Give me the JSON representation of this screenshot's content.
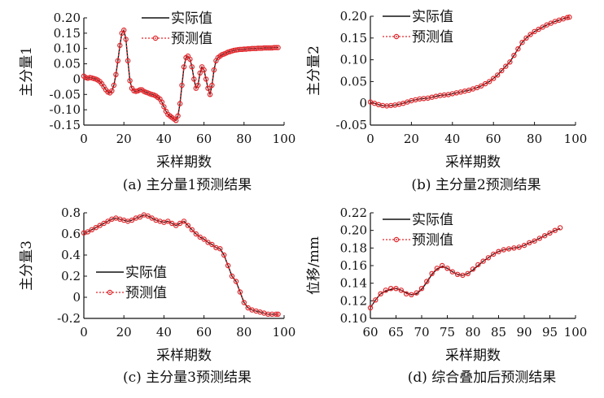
{
  "legend": {
    "actual": "实际值",
    "predicted": "预测值"
  },
  "colors": {
    "actual": "#111111",
    "predicted": "#e0262b"
  },
  "chart_data": [
    {
      "type": "line",
      "caption": "(a) 主分量1预测结果",
      "xlabel": "采样期数",
      "ylabel": "主分量1",
      "xlim": [
        0,
        100
      ],
      "ylim": [
        -0.15,
        0.2
      ],
      "xticks": [
        0,
        20,
        40,
        60,
        80,
        100
      ],
      "yticks": [
        -0.15,
        -0.1,
        -0.05,
        0,
        0.05,
        0.1,
        0.15,
        0.2
      ],
      "xtick_labels": [
        "0",
        "20",
        "40",
        "60",
        "80",
        "100"
      ],
      "ytick_labels": [
        "-0.15",
        "-0.10",
        "-0.05",
        "0",
        "0.05",
        "0.10",
        "0.15",
        "0.20"
      ],
      "legend_position": "top-right",
      "x": [
        0,
        1,
        2,
        3,
        4,
        5,
        6,
        7,
        8,
        9,
        10,
        11,
        12,
        13,
        14,
        15,
        16,
        17,
        18,
        19,
        20,
        21,
        22,
        23,
        24,
        25,
        26,
        27,
        28,
        29,
        30,
        31,
        32,
        33,
        34,
        35,
        36,
        37,
        38,
        39,
        40,
        41,
        42,
        43,
        44,
        45,
        46,
        47,
        48,
        49,
        50,
        51,
        52,
        53,
        54,
        55,
        56,
        57,
        58,
        59,
        60,
        61,
        62,
        63,
        64,
        65,
        66,
        67,
        68,
        69,
        70,
        71,
        72,
        73,
        74,
        75,
        76,
        77,
        78,
        79,
        80,
        81,
        82,
        83,
        84,
        85,
        86,
        87,
        88,
        89,
        90,
        91,
        92,
        93,
        94,
        95,
        96,
        97
      ],
      "series": [
        {
          "name": "实际值",
          "values": [
            0.01,
            0.005,
            0.003,
            0.005,
            0.004,
            0.002,
            0.0,
            -0.003,
            -0.008,
            -0.015,
            -0.025,
            -0.035,
            -0.042,
            -0.045,
            -0.038,
            -0.02,
            0.015,
            0.06,
            0.11,
            0.15,
            0.16,
            0.13,
            0.06,
            -0.005,
            -0.03,
            -0.038,
            -0.04,
            -0.038,
            -0.035,
            -0.035,
            -0.04,
            -0.043,
            -0.045,
            -0.048,
            -0.05,
            -0.052,
            -0.055,
            -0.06,
            -0.065,
            -0.075,
            -0.09,
            -0.105,
            -0.115,
            -0.12,
            -0.125,
            -0.13,
            -0.135,
            -0.12,
            -0.08,
            -0.02,
            0.04,
            0.07,
            0.075,
            0.065,
            0.04,
            0.0,
            -0.03,
            -0.02,
            0.02,
            0.04,
            0.03,
            0.0,
            -0.03,
            -0.05,
            -0.02,
            0.03,
            0.06,
            0.07,
            0.075,
            0.08,
            0.082,
            0.085,
            0.088,
            0.09,
            0.092,
            0.094,
            0.095,
            0.096,
            0.097,
            0.097,
            0.098,
            0.098,
            0.099,
            0.099,
            0.1,
            0.1,
            0.1,
            0.101,
            0.101,
            0.101,
            0.102,
            0.102,
            0.102,
            0.102,
            0.102,
            0.103,
            0.103,
            0.103
          ]
        },
        {
          "name": "预测值",
          "values": [
            0.01,
            0.005,
            0.003,
            0.005,
            0.004,
            0.002,
            0.0,
            -0.003,
            -0.008,
            -0.015,
            -0.025,
            -0.035,
            -0.042,
            -0.045,
            -0.038,
            -0.02,
            0.015,
            0.06,
            0.11,
            0.15,
            0.16,
            0.13,
            0.06,
            -0.005,
            -0.03,
            -0.038,
            -0.04,
            -0.038,
            -0.035,
            -0.035,
            -0.04,
            -0.043,
            -0.045,
            -0.048,
            -0.05,
            -0.052,
            -0.055,
            -0.06,
            -0.065,
            -0.075,
            -0.09,
            -0.105,
            -0.115,
            -0.12,
            -0.125,
            -0.13,
            -0.135,
            -0.12,
            -0.08,
            -0.02,
            0.04,
            0.07,
            0.075,
            0.065,
            0.04,
            0.0,
            -0.03,
            -0.02,
            0.02,
            0.04,
            0.03,
            0.0,
            -0.03,
            -0.05,
            -0.02,
            0.03,
            0.06,
            0.07,
            0.075,
            0.08,
            0.082,
            0.085,
            0.088,
            0.09,
            0.092,
            0.094,
            0.095,
            0.096,
            0.097,
            0.097,
            0.098,
            0.098,
            0.099,
            0.099,
            0.1,
            0.1,
            0.1,
            0.101,
            0.101,
            0.101,
            0.102,
            0.102,
            0.102,
            0.102,
            0.102,
            0.103,
            0.103,
            0.103
          ]
        }
      ]
    },
    {
      "type": "line",
      "caption": "(b) 主分量2预测结果",
      "xlabel": "采样期数",
      "ylabel": "主分量2",
      "xlim": [
        0,
        100
      ],
      "ylim": [
        -0.05,
        0.2
      ],
      "xticks": [
        0,
        20,
        40,
        60,
        80,
        100
      ],
      "yticks": [
        -0.05,
        0,
        0.05,
        0.1,
        0.15,
        0.2
      ],
      "xtick_labels": [
        "0",
        "20",
        "40",
        "60",
        "80",
        "100"
      ],
      "ytick_labels": [
        "-0.05",
        "0",
        "0.05",
        "0.10",
        "0.15",
        "0.20"
      ],
      "legend_position": "top-left",
      "x": [
        0,
        2,
        4,
        6,
        8,
        10,
        12,
        14,
        16,
        18,
        20,
        22,
        24,
        26,
        28,
        30,
        32,
        34,
        36,
        38,
        40,
        42,
        44,
        46,
        48,
        50,
        52,
        54,
        56,
        58,
        60,
        62,
        64,
        66,
        68,
        70,
        72,
        74,
        76,
        78,
        80,
        82,
        84,
        86,
        88,
        90,
        92,
        94,
        96,
        97
      ],
      "series": [
        {
          "name": "实际值",
          "values": [
            0.003,
            0.0,
            -0.003,
            -0.005,
            -0.006,
            -0.005,
            -0.004,
            -0.002,
            0.0,
            0.003,
            0.006,
            0.008,
            0.01,
            0.011,
            0.012,
            0.014,
            0.016,
            0.018,
            0.019,
            0.02,
            0.022,
            0.024,
            0.026,
            0.028,
            0.03,
            0.033,
            0.036,
            0.04,
            0.045,
            0.05,
            0.057,
            0.065,
            0.075,
            0.085,
            0.095,
            0.11,
            0.125,
            0.14,
            0.15,
            0.158,
            0.165,
            0.17,
            0.175,
            0.18,
            0.184,
            0.188,
            0.191,
            0.194,
            0.197,
            0.198
          ]
        },
        {
          "name": "预测值",
          "values": [
            0.003,
            0.0,
            -0.003,
            -0.005,
            -0.006,
            -0.005,
            -0.004,
            -0.002,
            0.0,
            0.003,
            0.006,
            0.008,
            0.01,
            0.011,
            0.012,
            0.014,
            0.016,
            0.018,
            0.019,
            0.02,
            0.022,
            0.024,
            0.026,
            0.028,
            0.03,
            0.033,
            0.036,
            0.04,
            0.045,
            0.05,
            0.057,
            0.065,
            0.075,
            0.085,
            0.095,
            0.11,
            0.125,
            0.14,
            0.15,
            0.158,
            0.165,
            0.17,
            0.175,
            0.18,
            0.184,
            0.188,
            0.191,
            0.194,
            0.197,
            0.198
          ]
        }
      ]
    },
    {
      "type": "line",
      "caption": "(c) 主分量3预测结果",
      "xlabel": "采样期数",
      "ylabel": "主分量3",
      "xlim": [
        0,
        100
      ],
      "ylim": [
        -0.2,
        0.8
      ],
      "xticks": [
        0,
        20,
        40,
        60,
        80,
        100
      ],
      "yticks": [
        -0.2,
        0,
        0.2,
        0.4,
        0.6,
        0.8
      ],
      "xtick_labels": [
        "0",
        "20",
        "40",
        "60",
        "80",
        "100"
      ],
      "ytick_labels": [
        "-0.2",
        "0",
        "0.2",
        "0.4",
        "0.6",
        "0.8"
      ],
      "legend_position": "center-left",
      "x": [
        0,
        2,
        4,
        6,
        8,
        10,
        12,
        14,
        16,
        18,
        20,
        22,
        24,
        26,
        28,
        30,
        32,
        34,
        36,
        38,
        40,
        42,
        44,
        46,
        48,
        50,
        52,
        54,
        56,
        58,
        60,
        62,
        64,
        66,
        68,
        70,
        72,
        74,
        76,
        78,
        80,
        82,
        84,
        86,
        88,
        90,
        92,
        94,
        96,
        97
      ],
      "series": [
        {
          "name": "实际值",
          "values": [
            0.61,
            0.62,
            0.64,
            0.66,
            0.68,
            0.7,
            0.72,
            0.74,
            0.75,
            0.74,
            0.73,
            0.72,
            0.73,
            0.75,
            0.76,
            0.78,
            0.77,
            0.75,
            0.73,
            0.72,
            0.71,
            0.72,
            0.7,
            0.68,
            0.7,
            0.72,
            0.68,
            0.64,
            0.6,
            0.57,
            0.55,
            0.52,
            0.5,
            0.47,
            0.46,
            0.4,
            0.3,
            0.2,
            0.15,
            0.05,
            -0.05,
            -0.1,
            -0.12,
            -0.13,
            -0.14,
            -0.15,
            -0.16,
            -0.16,
            -0.16,
            -0.16
          ]
        },
        {
          "name": "预测值",
          "values": [
            0.61,
            0.62,
            0.64,
            0.66,
            0.68,
            0.7,
            0.72,
            0.74,
            0.75,
            0.74,
            0.73,
            0.72,
            0.73,
            0.75,
            0.76,
            0.78,
            0.77,
            0.75,
            0.73,
            0.72,
            0.71,
            0.72,
            0.7,
            0.68,
            0.7,
            0.72,
            0.68,
            0.64,
            0.6,
            0.57,
            0.55,
            0.52,
            0.5,
            0.47,
            0.46,
            0.4,
            0.3,
            0.2,
            0.15,
            0.05,
            -0.05,
            -0.1,
            -0.12,
            -0.13,
            -0.14,
            -0.15,
            -0.16,
            -0.16,
            -0.16,
            -0.16
          ]
        }
      ]
    },
    {
      "type": "line",
      "caption": "(d) 综合叠加后预测结果",
      "xlabel": "采样期数",
      "ylabel": "位移/mm",
      "xlim": [
        60,
        100
      ],
      "ylim": [
        0.1,
        0.22
      ],
      "xticks": [
        60,
        65,
        70,
        75,
        80,
        85,
        90,
        95,
        100
      ],
      "yticks": [
        0.1,
        0.12,
        0.14,
        0.16,
        0.18,
        0.2,
        0.22
      ],
      "xtick_labels": [
        "60",
        "65",
        "70",
        "75",
        "80",
        "85",
        "90",
        "95",
        "100"
      ],
      "ytick_labels": [
        "0.10",
        "0.12",
        "0.14",
        "0.16",
        "0.18",
        "0.20",
        "0.22"
      ],
      "legend_position": "top-left",
      "x": [
        60,
        61,
        62,
        63,
        64,
        65,
        66,
        67,
        68,
        69,
        70,
        71,
        72,
        73,
        74,
        75,
        76,
        77,
        78,
        79,
        80,
        81,
        82,
        83,
        84,
        85,
        86,
        87,
        88,
        89,
        90,
        91,
        92,
        93,
        94,
        95,
        96,
        97
      ],
      "series": [
        {
          "name": "实际值",
          "values": [
            0.112,
            0.121,
            0.128,
            0.131,
            0.133,
            0.134,
            0.132,
            0.129,
            0.127,
            0.128,
            0.133,
            0.141,
            0.15,
            0.156,
            0.159,
            0.157,
            0.153,
            0.15,
            0.149,
            0.151,
            0.155,
            0.16,
            0.165,
            0.169,
            0.173,
            0.176,
            0.178,
            0.179,
            0.18,
            0.181,
            0.183,
            0.186,
            0.188,
            0.191,
            0.194,
            0.197,
            0.2,
            0.202
          ]
        },
        {
          "name": "预测值",
          "values": [
            0.112,
            0.121,
            0.128,
            0.132,
            0.134,
            0.134,
            0.132,
            0.128,
            0.127,
            0.129,
            0.134,
            0.142,
            0.151,
            0.157,
            0.16,
            0.157,
            0.153,
            0.15,
            0.149,
            0.151,
            0.156,
            0.161,
            0.165,
            0.169,
            0.173,
            0.176,
            0.178,
            0.179,
            0.18,
            0.181,
            0.183,
            0.186,
            0.188,
            0.191,
            0.194,
            0.197,
            0.2,
            0.203
          ]
        }
      ]
    }
  ]
}
